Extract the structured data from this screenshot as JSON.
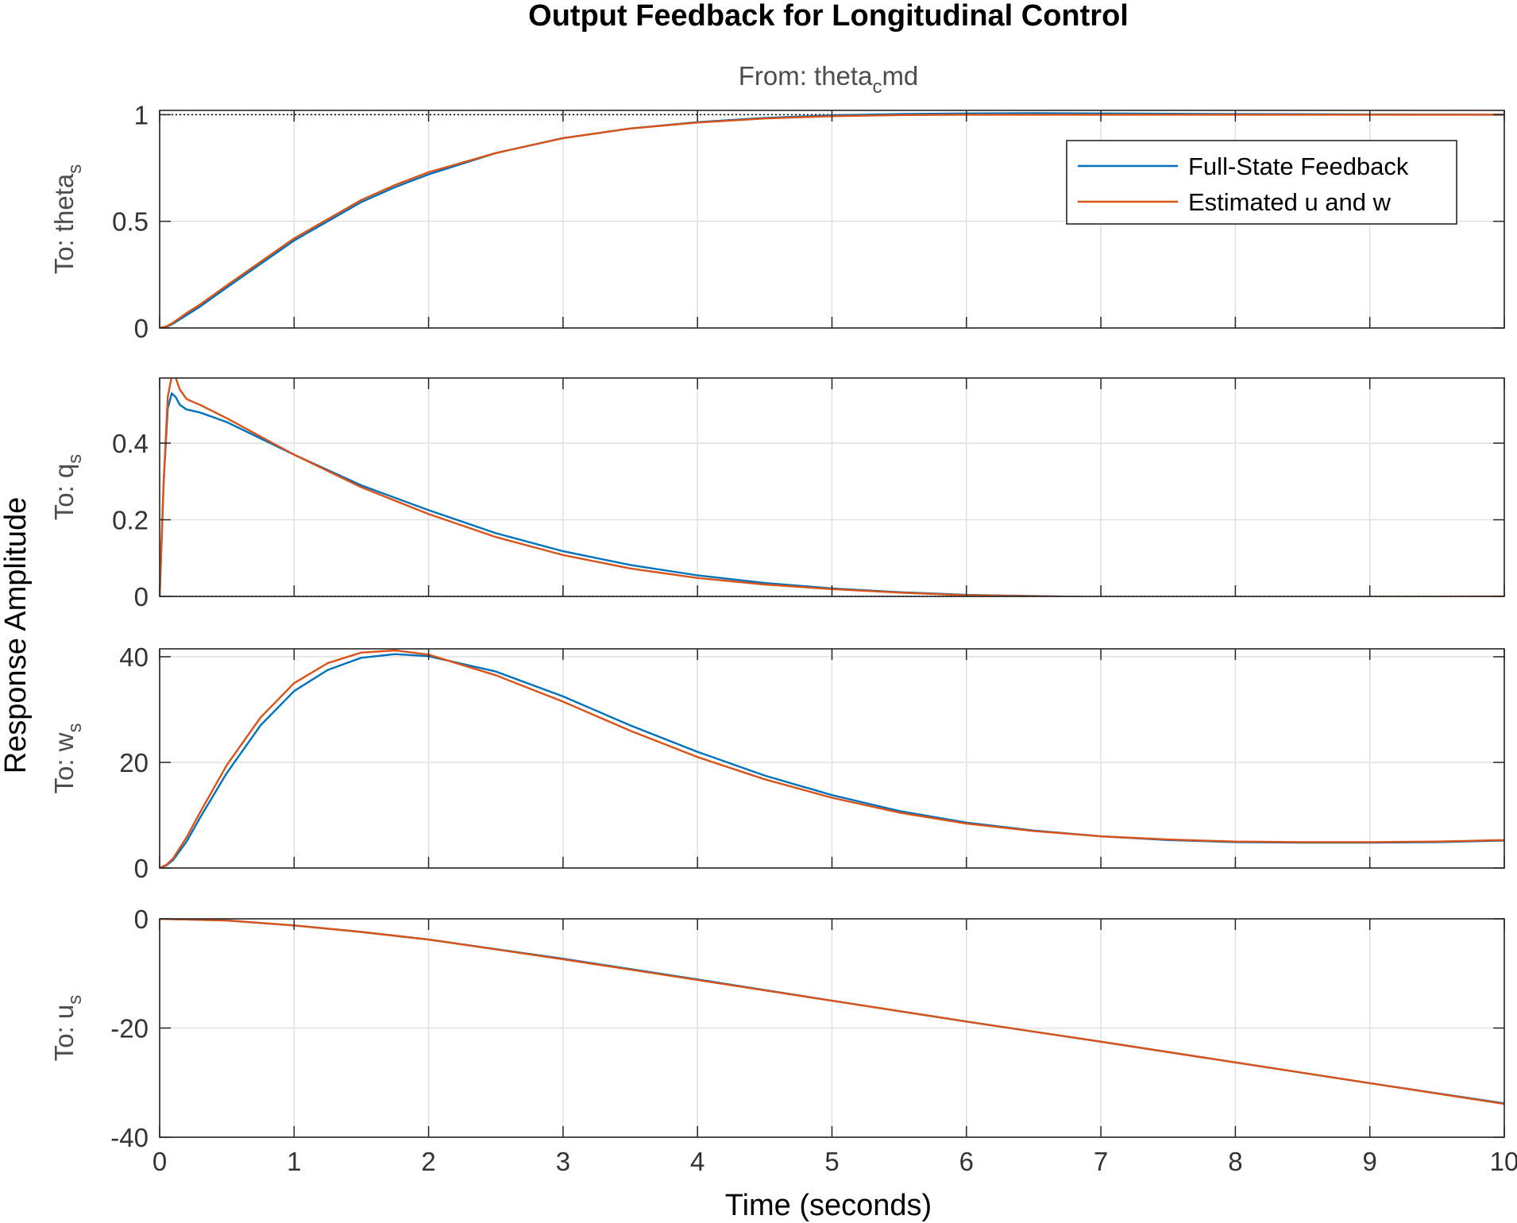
{
  "chart_data": {
    "type": "line",
    "title": "Output Feedback for Longitudinal Control",
    "subtitle": {
      "base": "From: theta",
      "sub": "c",
      "tail": "md"
    },
    "xlabel": "Time (seconds)",
    "ylabel": "Response Amplitude",
    "xlim": [
      0,
      10
    ],
    "xticks": [
      0,
      1,
      2,
      3,
      4,
      5,
      6,
      7,
      8,
      9,
      10
    ],
    "grid": true,
    "legend": {
      "position": "top-right of first panel",
      "entries": [
        "Full-State Feedback",
        "Estimated u and w"
      ]
    },
    "colors": {
      "Full-State Feedback": "#0072bd",
      "Estimated u and w": "#d95319"
    },
    "panels": [
      {
        "ylabel_base": "To: theta",
        "ylabel_sub": "s",
        "ylim": [
          0,
          1.02
        ],
        "yticks": [
          0,
          0.5,
          1
        ],
        "ytick_labels": [
          "0",
          "0.5",
          "1"
        ],
        "reference": 1,
        "series": [
          {
            "name": "Full-State Feedback",
            "x": [
              0,
              0.05,
              0.1,
              0.2,
              0.3,
              0.5,
              0.75,
              1,
              1.25,
              1.5,
              1.75,
              2,
              2.5,
              3,
              3.5,
              4,
              4.5,
              5,
              5.5,
              6,
              6.5,
              7,
              8,
              9,
              10
            ],
            "y": [
              0,
              0.005,
              0.02,
              0.06,
              0.1,
              0.19,
              0.3,
              0.41,
              0.5,
              0.59,
              0.66,
              0.72,
              0.82,
              0.89,
              0.935,
              0.965,
              0.985,
              0.997,
              1.003,
              1.006,
              1.007,
              1.006,
              1.003,
              1.001,
              1.0
            ]
          },
          {
            "name": "Estimated u and w",
            "x": [
              0,
              0.05,
              0.1,
              0.2,
              0.3,
              0.5,
              0.75,
              1,
              1.25,
              1.5,
              1.75,
              2,
              2.5,
              3,
              3.5,
              4,
              4.5,
              5,
              5.5,
              6,
              6.5,
              7,
              8,
              9,
              10
            ],
            "y": [
              0,
              0.007,
              0.025,
              0.07,
              0.11,
              0.2,
              0.31,
              0.42,
              0.51,
              0.6,
              0.67,
              0.73,
              0.82,
              0.89,
              0.935,
              0.963,
              0.982,
              0.993,
              0.998,
              1.0,
              1.0,
              1.0,
              1.0,
              1.0,
              1.0
            ]
          }
        ]
      },
      {
        "ylabel_base": "To: q",
        "ylabel_sub": "s",
        "ylim": [
          0,
          0.57
        ],
        "yticks": [
          0,
          0.2,
          0.4
        ],
        "ytick_labels": [
          "0",
          "0.2",
          "0.4"
        ],
        "reference": 0,
        "series": [
          {
            "name": "Full-State Feedback",
            "x": [
              0,
              0.03,
              0.06,
              0.09,
              0.12,
              0.15,
              0.2,
              0.3,
              0.5,
              1,
              1.5,
              2,
              2.5,
              3,
              3.5,
              4,
              4.5,
              5,
              5.5,
              6,
              7,
              8,
              9,
              10
            ],
            "y": [
              0,
              0.3,
              0.49,
              0.53,
              0.52,
              0.5,
              0.488,
              0.48,
              0.455,
              0.37,
              0.29,
              0.225,
              0.165,
              0.118,
              0.082,
              0.055,
              0.035,
              0.021,
              0.011,
              0.004,
              -0.002,
              -0.003,
              -0.002,
              -0.001
            ]
          },
          {
            "name": "Estimated u and w",
            "x": [
              0,
              0.03,
              0.06,
              0.09,
              0.12,
              0.15,
              0.2,
              0.3,
              0.5,
              1,
              1.5,
              2,
              2.5,
              3,
              3.5,
              4,
              4.5,
              5,
              5.5,
              6,
              7,
              8,
              9,
              10
            ],
            "y": [
              0,
              0.3,
              0.52,
              0.575,
              0.57,
              0.54,
              0.515,
              0.5,
              0.465,
              0.37,
              0.285,
              0.215,
              0.155,
              0.108,
              0.073,
              0.048,
              0.031,
              0.019,
              0.01,
              0.003,
              -0.002,
              -0.002,
              -0.001,
              0.0
            ]
          }
        ]
      },
      {
        "ylabel_base": "To: w",
        "ylabel_sub": "s",
        "ylim": [
          0,
          41.5
        ],
        "yticks": [
          0,
          20,
          40
        ],
        "ytick_labels": [
          "0",
          "20",
          "40"
        ],
        "series": [
          {
            "name": "Full-State Feedback",
            "x": [
              0,
              0.05,
              0.1,
              0.2,
              0.3,
              0.5,
              0.75,
              1,
              1.25,
              1.5,
              1.75,
              2,
              2.5,
              3,
              3.5,
              4,
              4.5,
              5,
              5.5,
              6,
              6.5,
              7,
              7.5,
              8,
              8.5,
              9,
              9.5,
              10
            ],
            "y": [
              0,
              0.5,
              1.5,
              5,
              9.5,
              18,
              27,
              33.5,
              37.5,
              39.8,
              40.5,
              40.1,
              37.2,
              32.5,
              27,
              22,
              17.5,
              13.8,
              10.8,
              8.6,
              7.1,
              6.0,
              5.3,
              4.9,
              4.8,
              4.8,
              4.9,
              5.2
            ]
          },
          {
            "name": "Estimated u and w",
            "x": [
              0,
              0.05,
              0.1,
              0.2,
              0.3,
              0.5,
              0.75,
              1,
              1.25,
              1.5,
              1.75,
              2,
              2.5,
              3,
              3.5,
              4,
              4.5,
              5,
              5.5,
              6,
              6.5,
              7,
              7.5,
              8,
              8.5,
              9,
              9.5,
              10
            ],
            "y": [
              0,
              0.6,
              1.8,
              5.8,
              10.5,
              19.5,
              28.5,
              35,
              38.8,
              40.8,
              41.2,
              40.4,
              36.5,
              31.5,
              26,
              21,
              16.8,
              13.3,
              10.5,
              8.4,
              7.0,
              6.0,
              5.4,
              5.0,
              4.9,
              4.9,
              5.0,
              5.3
            ]
          }
        ]
      },
      {
        "ylabel_base": "To: u",
        "ylabel_sub": "s",
        "ylim": [
          -40,
          0
        ],
        "yticks": [
          -40,
          -20,
          0
        ],
        "ytick_labels": [
          "-40",
          "-20",
          "0"
        ],
        "series": [
          {
            "name": "Full-State Feedback",
            "x": [
              0,
              0.5,
              1,
              1.5,
              2,
              3,
              4,
              5,
              6,
              7,
              8,
              9,
              10
            ],
            "y": [
              0,
              -0.3,
              -1.2,
              -2.4,
              -3.8,
              -7.3,
              -11.1,
              -15.0,
              -18.8,
              -22.5,
              -26.3,
              -30.1,
              -33.8
            ]
          },
          {
            "name": "Estimated u and w",
            "x": [
              0,
              0.5,
              1,
              1.5,
              2,
              3,
              4,
              5,
              6,
              7,
              8,
              9,
              10
            ],
            "y": [
              0,
              -0.3,
              -1.2,
              -2.4,
              -3.8,
              -7.4,
              -11.2,
              -15.0,
              -18.8,
              -22.5,
              -26.3,
              -30.1,
              -33.9
            ]
          }
        ]
      }
    ]
  }
}
